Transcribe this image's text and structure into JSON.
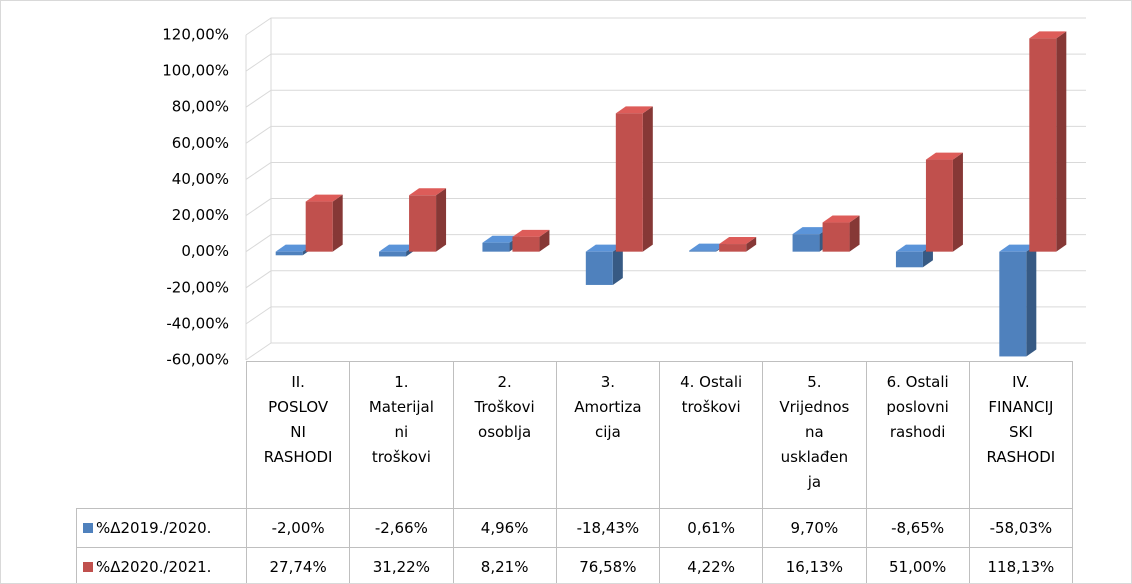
{
  "chart_data": {
    "type": "bar3d",
    "categories": [
      "II. POSLOVNI RASHODI",
      "1. Materijalni troškovi",
      "2. Troškovi osoblja",
      "3. Amortizacija",
      "4. Ostali troškovi",
      "5. Vrijednosna usklađenja",
      "6. Ostali poslovni rashodi",
      "IV. FINANCIJSKI RASHODI"
    ],
    "series": [
      {
        "name": "%Δ2019./2020.",
        "color": "#4f81bd",
        "values": [
          -2.0,
          -2.66,
          4.96,
          -18.43,
          0.61,
          9.7,
          -8.65,
          -58.03
        ],
        "value_labels": [
          "-2,00%",
          "-2,66%",
          "4,96%",
          "-18,43%",
          "0,61%",
          "9,70%",
          "-8,65%",
          "-58,03%"
        ]
      },
      {
        "name": "%Δ2020./2021.",
        "color": "#c0504d",
        "values": [
          27.74,
          31.22,
          8.21,
          76.58,
          4.22,
          16.13,
          51.0,
          118.13
        ],
        "value_labels": [
          "27,74%",
          "31,22%",
          "8,21%",
          "76,58%",
          "4,22%",
          "16,13%",
          "51,00%",
          "118,13%"
        ]
      }
    ],
    "ylim": [
      -60,
      120
    ],
    "yticks": [
      {
        "value": -60,
        "label": "-60,00%"
      },
      {
        "value": -40,
        "label": "-40,00%"
      },
      {
        "value": -20,
        "label": "-20,00%"
      },
      {
        "value": 0,
        "label": "0,00%"
      },
      {
        "value": 20,
        "label": "20,00%"
      },
      {
        "value": 40,
        "label": "40,00%"
      },
      {
        "value": 60,
        "label": "60,00%"
      },
      {
        "value": 80,
        "label": "80,00%"
      },
      {
        "value": 100,
        "label": "100,00%"
      },
      {
        "value": 120,
        "label": "120,00%"
      }
    ],
    "grid": true
  }
}
